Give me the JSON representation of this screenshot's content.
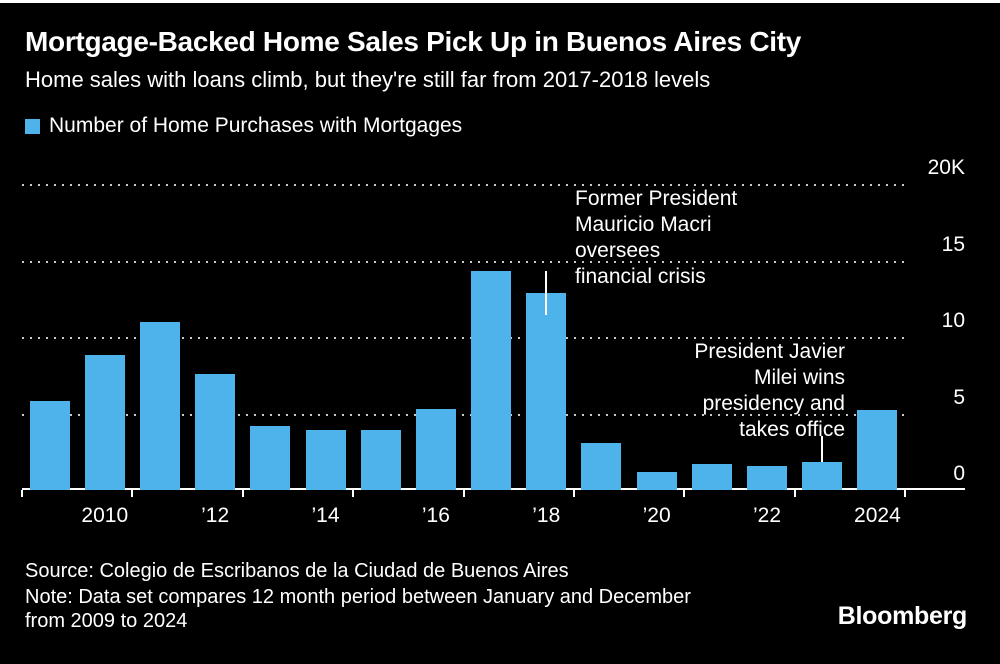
{
  "chart_data": {
    "type": "bar",
    "title": "Mortgage-Backed Home Sales Pick Up in Buenos Aires City",
    "subtitle": "Home sales with loans climb, but they're still far from 2017-2018 levels",
    "legend_label": "Number of Home Purchases with Mortgages",
    "categories": [
      2009,
      2010,
      2011,
      2012,
      2013,
      2014,
      2015,
      2016,
      2017,
      2018,
      2019,
      2020,
      2021,
      2022,
      2023,
      2024
    ],
    "values": [
      5.8,
      8.8,
      11.0,
      7.6,
      4.2,
      3.9,
      3.9,
      5.3,
      14.3,
      12.9,
      3.1,
      1.2,
      1.7,
      1.6,
      1.8,
      5.2
    ],
    "values_unit": "thousands of purchases",
    "ylim": [
      0,
      20
    ],
    "yticks": [
      {
        "value": 0,
        "label": "0"
      },
      {
        "value": 5,
        "label": "5"
      },
      {
        "value": 10,
        "label": "10"
      },
      {
        "value": 15,
        "label": "15"
      },
      {
        "value": 20,
        "label": "20K"
      }
    ],
    "xticks": [
      {
        "index": 1,
        "label": "2010"
      },
      {
        "index": 3,
        "label": "’12"
      },
      {
        "index": 5,
        "label": "’14"
      },
      {
        "index": 7,
        "label": "’16"
      },
      {
        "index": 9,
        "label": "’18"
      },
      {
        "index": 11,
        "label": "’20"
      },
      {
        "index": 13,
        "label": "’22"
      },
      {
        "index": 15,
        "label": "2024"
      }
    ],
    "bar_color": "#4EB3EA",
    "background_color": "#000000",
    "grid": "dotted horizontal gridlines",
    "legend_position": "top-left",
    "yaxis_position": "right",
    "annotations": [
      {
        "text": "Former President\nMauricio Macri\noversees\nfinancial crisis",
        "target_year": 2018,
        "align": "left"
      },
      {
        "text": "President Javier\nMilei wins\npresidency and\ntakes office",
        "target_year": 2023,
        "align": "right"
      }
    ]
  },
  "footer": {
    "source": "Source: Colegio de Escribanos de la Ciudad de Buenos Aires",
    "note": "Note: Data set compares 12 month period between January and December\nfrom 2009 to 2024",
    "brand": "Bloomberg"
  }
}
